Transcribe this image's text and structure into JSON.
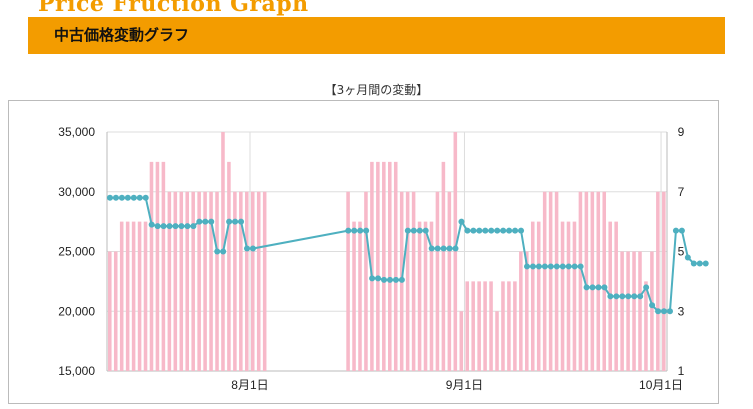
{
  "header": {
    "brand": "Price Fruction Graph",
    "title": "中古価格変動グラフ"
  },
  "chart_data": {
    "type": "bar+line",
    "title": "【3ヶ月間の変動】",
    "x_labels": [
      {
        "label": "8月1日",
        "index": 24
      },
      {
        "label": "9月1日",
        "index": 60
      },
      {
        "label": "10月1日",
        "index": 93
      }
    ],
    "ylim_left": [
      15000,
      35000
    ],
    "yticks_left": [
      "15,000",
      "20,000",
      "25,000",
      "30,000",
      "35,000"
    ],
    "ylim_right": [
      1,
      9
    ],
    "yticks_right": [
      "1",
      "3",
      "5",
      "7",
      "9"
    ],
    "grid": true,
    "colors": {
      "bars": "#f7b9c9",
      "line": "#4eb0c0",
      "grid": "#dddddd"
    },
    "bar_values": [
      5,
      5,
      6,
      6,
      6,
      6,
      6,
      8,
      8,
      8,
      7,
      7,
      7,
      7,
      7,
      7,
      7,
      7,
      7,
      9,
      8,
      7,
      7,
      7,
      7,
      7,
      7,
      null,
      null,
      null,
      null,
      null,
      null,
      null,
      null,
      null,
      null,
      null,
      null,
      null,
      7,
      6,
      6,
      7,
      8,
      8,
      8,
      8,
      8,
      7,
      7,
      7,
      6,
      6,
      6,
      7,
      8,
      7,
      9,
      3,
      4,
      4,
      4,
      4,
      4,
      3,
      4,
      4,
      4,
      5,
      5,
      6,
      6,
      7,
      7,
      7,
      6,
      6,
      6,
      7,
      7,
      7,
      7,
      7,
      6,
      6,
      5,
      5,
      5,
      5,
      4,
      5,
      7,
      7
    ],
    "line_values": [
      6.8,
      6.8,
      6.8,
      6.8,
      6.8,
      6.8,
      6.8,
      5.9,
      5.85,
      5.85,
      5.85,
      5.85,
      5.85,
      5.85,
      5.85,
      6.0,
      6.0,
      6.0,
      5.0,
      5.0,
      6.0,
      6.0,
      6.0,
      5.1,
      5.1,
      null,
      null,
      null,
      null,
      null,
      null,
      null,
      null,
      null,
      null,
      null,
      null,
      null,
      null,
      null,
      5.7,
      5.7,
      5.7,
      5.7,
      4.1,
      4.1,
      4.05,
      4.05,
      4.05,
      4.05,
      5.7,
      5.7,
      5.7,
      5.7,
      5.1,
      5.1,
      5.1,
      5.1,
      5.1,
      6.0,
      5.7,
      5.7,
      5.7,
      5.7,
      5.7,
      5.7,
      5.7,
      5.7,
      5.7,
      5.7,
      4.5,
      4.5,
      4.5,
      4.5,
      4.5,
      4.5,
      4.5,
      4.5,
      4.5,
      4.5,
      3.8,
      3.8,
      3.8,
      3.8,
      3.5,
      3.5,
      3.5,
      3.5,
      3.5,
      3.5,
      3.8,
      3.2,
      3.0,
      3.0,
      3.0,
      5.7,
      5.7,
      4.8,
      4.6,
      4.6,
      4.6
    ]
  }
}
